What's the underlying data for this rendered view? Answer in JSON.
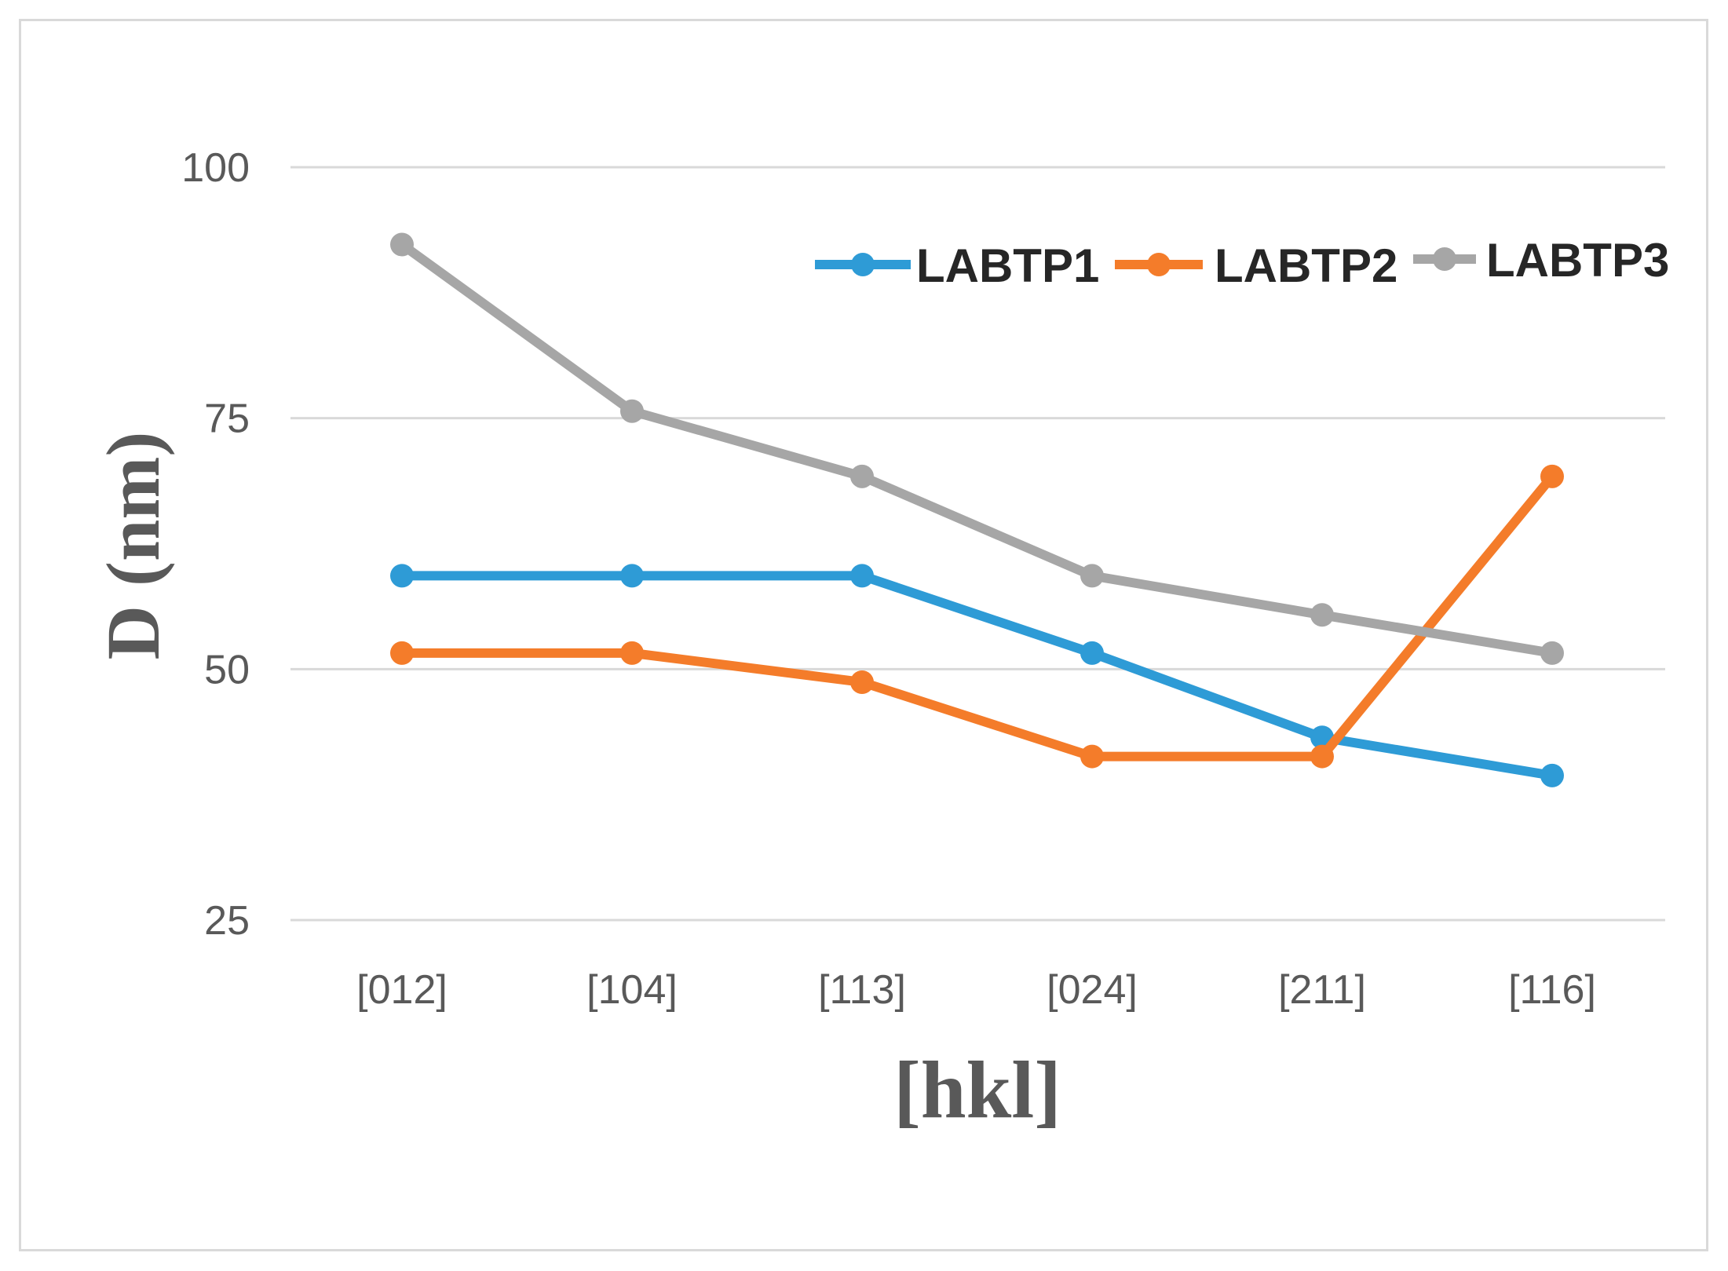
{
  "chart_data": {
    "type": "line",
    "title": "",
    "xlabel": "[hkl]",
    "ylabel": "D (nm)",
    "categories": [
      "[012]",
      "[104]",
      "[113]",
      "[024]",
      "[211]",
      "[116]"
    ],
    "yticks": [
      "25",
      "50",
      "75",
      "100"
    ],
    "ylim": [
      25,
      100
    ],
    "grid": true,
    "legend_position": "top-right",
    "series": [
      {
        "name": "LABTP1",
        "color": "#2e9bd6",
        "values": [
          59.3,
          59.3,
          59.3,
          51.6,
          43.2,
          39.4
        ]
      },
      {
        "name": "LABTP2",
        "color": "#f47c2a",
        "values": [
          51.6,
          51.6,
          48.7,
          41.3,
          41.3,
          69.2
        ]
      },
      {
        "name": "LABTP3",
        "color": "#a6a6a6",
        "values": [
          92.3,
          75.7,
          69.2,
          59.3,
          55.4,
          51.6
        ]
      }
    ]
  }
}
